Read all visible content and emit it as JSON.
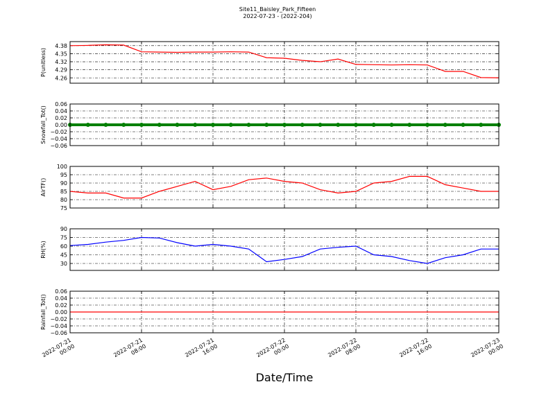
{
  "title": "Site11_Baisley_Park_Fifteen",
  "subtitle": "2022-07-23 - (2022-204)",
  "xlabel": "Date/Time",
  "chart_data": [
    {
      "type": "line",
      "ylabel": "P(unitless)",
      "xtick_labels": false,
      "x": [
        "2022-07-21 00:00",
        "2022-07-21 02:00",
        "2022-07-21 04:00",
        "2022-07-21 06:00",
        "2022-07-21 08:00",
        "2022-07-21 10:00",
        "2022-07-21 12:00",
        "2022-07-21 14:00",
        "2022-07-21 16:00",
        "2022-07-21 18:00",
        "2022-07-21 20:00",
        "2022-07-21 22:00",
        "2022-07-22 00:00",
        "2022-07-22 02:00",
        "2022-07-22 04:00",
        "2022-07-22 06:00",
        "2022-07-22 08:00",
        "2022-07-22 10:00",
        "2022-07-22 12:00",
        "2022-07-22 14:00",
        "2022-07-22 16:00",
        "2022-07-22 18:00",
        "2022-07-22 20:00",
        "2022-07-22 22:00",
        "2022-07-23 00:00"
      ],
      "series": [
        {
          "name": "P",
          "color": "#ff0000",
          "values": [
            4.38,
            4.381,
            4.383,
            4.382,
            4.357,
            4.356,
            4.355,
            4.356,
            4.356,
            4.357,
            4.356,
            4.335,
            4.333,
            4.325,
            4.32,
            4.33,
            4.31,
            4.309,
            4.308,
            4.309,
            4.308,
            4.284,
            4.284,
            4.261,
            4.26
          ]
        }
      ],
      "xlim": [
        "2022-07-21 00:00",
        "2022-07-23 00:00"
      ],
      "xticks": [
        "2022-07-21 00:00",
        "2022-07-21 08:00",
        "2022-07-21 16:00",
        "2022-07-22 00:00",
        "2022-07-22 08:00",
        "2022-07-22 16:00",
        "2022-07-23 00:00"
      ],
      "ylim": [
        4.24,
        4.395
      ],
      "yticks": [
        4.26,
        4.29,
        4.32,
        4.35,
        4.38
      ],
      "grid": true
    },
    {
      "type": "line",
      "ylabel": "Snowfall_Tot()",
      "xtick_labels": false,
      "markers": true,
      "x": [
        "2022-07-21 00:00",
        "2022-07-21 02:00",
        "2022-07-21 04:00",
        "2022-07-21 06:00",
        "2022-07-21 08:00",
        "2022-07-21 10:00",
        "2022-07-21 12:00",
        "2022-07-21 14:00",
        "2022-07-21 16:00",
        "2022-07-21 18:00",
        "2022-07-21 20:00",
        "2022-07-21 22:00",
        "2022-07-22 00:00",
        "2022-07-22 02:00",
        "2022-07-22 04:00",
        "2022-07-22 06:00",
        "2022-07-22 08:00",
        "2022-07-22 10:00",
        "2022-07-22 12:00",
        "2022-07-22 14:00",
        "2022-07-22 16:00",
        "2022-07-22 18:00",
        "2022-07-22 20:00",
        "2022-07-22 22:00",
        "2022-07-23 00:00"
      ],
      "series": [
        {
          "name": "Snowfall_Tot",
          "color": "#008000",
          "values": [
            0,
            0,
            0,
            0,
            0,
            0,
            0,
            0,
            0,
            0,
            0,
            0,
            0,
            0,
            0,
            0,
            0,
            0,
            0,
            0,
            0,
            0,
            0,
            0,
            0
          ]
        }
      ],
      "xlim": [
        "2022-07-21 00:00",
        "2022-07-23 00:00"
      ],
      "xticks": [
        "2022-07-21 00:00",
        "2022-07-21 08:00",
        "2022-07-21 16:00",
        "2022-07-22 00:00",
        "2022-07-22 08:00",
        "2022-07-22 16:00",
        "2022-07-23 00:00"
      ],
      "ylim": [
        -0.06,
        0.06
      ],
      "yticks": [
        {
          "value": -0.06,
          "label": "−0.06"
        },
        {
          "value": -0.04,
          "label": "−0.04"
        },
        {
          "value": -0.02,
          "label": "−0.02"
        },
        {
          "value": 0,
          "label": "0.00"
        },
        0.02,
        0.04,
        0.06
      ],
      "grid": true
    },
    {
      "type": "line",
      "ylabel": "AirTF()",
      "xtick_labels": false,
      "x": [
        "2022-07-21 00:00",
        "2022-07-21 02:00",
        "2022-07-21 04:00",
        "2022-07-21 06:00",
        "2022-07-21 08:00",
        "2022-07-21 10:00",
        "2022-07-21 12:00",
        "2022-07-21 14:00",
        "2022-07-21 16:00",
        "2022-07-21 18:00",
        "2022-07-21 20:00",
        "2022-07-21 22:00",
        "2022-07-22 00:00",
        "2022-07-22 02:00",
        "2022-07-22 04:00",
        "2022-07-22 06:00",
        "2022-07-22 08:00",
        "2022-07-22 10:00",
        "2022-07-22 12:00",
        "2022-07-22 14:00",
        "2022-07-22 16:00",
        "2022-07-22 18:00",
        "2022-07-22 20:00",
        "2022-07-22 22:00",
        "2022-07-23 00:00"
      ],
      "series": [
        {
          "name": "AirTF",
          "color": "#ff0000",
          "values": [
            85,
            84,
            84,
            81,
            81,
            85,
            88,
            91,
            86,
            88,
            92,
            93,
            91,
            90,
            86,
            84,
            85,
            90,
            91,
            94,
            94,
            89,
            87,
            85,
            85
          ]
        }
      ],
      "xlim": [
        "2022-07-21 00:00",
        "2022-07-23 00:00"
      ],
      "xticks": [
        "2022-07-21 00:00",
        "2022-07-21 08:00",
        "2022-07-21 16:00",
        "2022-07-22 00:00",
        "2022-07-22 08:00",
        "2022-07-22 16:00",
        "2022-07-23 00:00"
      ],
      "ylim": [
        75,
        100
      ],
      "yticks": [
        75,
        80,
        85,
        90,
        95,
        100
      ],
      "grid": true
    },
    {
      "type": "line",
      "ylabel": "RH(%)",
      "xtick_labels": false,
      "x": [
        "2022-07-21 00:00",
        "2022-07-21 02:00",
        "2022-07-21 04:00",
        "2022-07-21 06:00",
        "2022-07-21 08:00",
        "2022-07-21 10:00",
        "2022-07-21 12:00",
        "2022-07-21 14:00",
        "2022-07-21 16:00",
        "2022-07-21 18:00",
        "2022-07-21 20:00",
        "2022-07-21 22:00",
        "2022-07-22 00:00",
        "2022-07-22 02:00",
        "2022-07-22 04:00",
        "2022-07-22 06:00",
        "2022-07-22 08:00",
        "2022-07-22 10:00",
        "2022-07-22 12:00",
        "2022-07-22 14:00",
        "2022-07-22 16:00",
        "2022-07-22 18:00",
        "2022-07-22 20:00",
        "2022-07-22 22:00",
        "2022-07-23 00:00"
      ],
      "series": [
        {
          "name": "RH",
          "color": "#0000ff",
          "values": [
            61,
            63,
            67,
            70,
            75,
            74,
            66,
            60,
            63,
            60,
            55,
            33,
            37,
            42,
            55,
            58,
            60,
            45,
            42,
            35,
            30,
            40,
            45,
            55,
            55
          ]
        }
      ],
      "xlim": [
        "2022-07-21 00:00",
        "2022-07-23 00:00"
      ],
      "xticks": [
        "2022-07-21 00:00",
        "2022-07-21 08:00",
        "2022-07-21 16:00",
        "2022-07-22 00:00",
        "2022-07-22 08:00",
        "2022-07-22 16:00",
        "2022-07-23 00:00"
      ],
      "ylim": [
        18,
        90
      ],
      "yticks": [
        30,
        45,
        60,
        75,
        90
      ],
      "grid": true
    },
    {
      "type": "line",
      "ylabel": "Rainfall_Tot()",
      "xtick_labels": true,
      "x": [
        "2022-07-21 00:00",
        "2022-07-21 02:00",
        "2022-07-21 04:00",
        "2022-07-21 06:00",
        "2022-07-21 08:00",
        "2022-07-21 10:00",
        "2022-07-21 12:00",
        "2022-07-21 14:00",
        "2022-07-21 16:00",
        "2022-07-21 18:00",
        "2022-07-21 20:00",
        "2022-07-21 22:00",
        "2022-07-22 00:00",
        "2022-07-22 02:00",
        "2022-07-22 04:00",
        "2022-07-22 06:00",
        "2022-07-22 08:00",
        "2022-07-22 10:00",
        "2022-07-22 12:00",
        "2022-07-22 14:00",
        "2022-07-22 16:00",
        "2022-07-22 18:00",
        "2022-07-22 20:00",
        "2022-07-22 22:00",
        "2022-07-23 00:00"
      ],
      "series": [
        {
          "name": "Rainfall_Tot",
          "color": "#ff0000",
          "values": [
            0,
            0,
            0,
            0,
            0,
            0,
            0,
            0,
            0,
            0,
            0,
            0,
            0,
            0,
            0,
            0,
            0,
            0,
            0,
            0,
            0,
            0,
            0,
            0,
            0
          ]
        }
      ],
      "xlim": [
        "2022-07-21 00:00",
        "2022-07-23 00:00"
      ],
      "xticks": [
        "2022-07-21 00:00",
        "2022-07-21 08:00",
        "2022-07-21 16:00",
        "2022-07-22 00:00",
        "2022-07-22 08:00",
        "2022-07-22 16:00",
        "2022-07-23 00:00"
      ],
      "ylim": [
        -0.06,
        0.06
      ],
      "yticks": [
        {
          "value": -0.06,
          "label": "−0.06"
        },
        {
          "value": -0.04,
          "label": "−0.04"
        },
        {
          "value": -0.02,
          "label": "−0.02"
        },
        {
          "value": 0,
          "label": "0.00"
        },
        0.02,
        0.04,
        0.06
      ],
      "grid": true
    }
  ]
}
